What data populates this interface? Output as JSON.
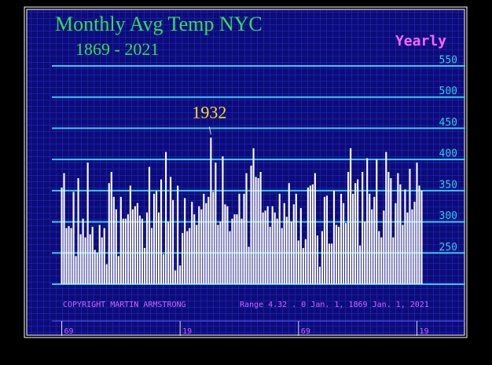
{
  "chart_data": {
    "type": "bar",
    "title": "Monthly Avg Temp NYC",
    "subtitle": "1869 - 2021",
    "label": "Yearly",
    "copyright": "COPYRIGHT MARTIN ARMSTRONG",
    "range_text": "Range  4.32 . 0 Jan.  1,  1869 Jan.  1,  2021",
    "annotation": {
      "text": "1932",
      "x": 1932
    },
    "color": "#ffffff",
    "grid": true,
    "x": [
      1869,
      1870,
      1871,
      1872,
      1873,
      1874,
      1875,
      1876,
      1877,
      1878,
      1879,
      1880,
      1881,
      1882,
      1883,
      1884,
      1885,
      1886,
      1887,
      1888,
      1889,
      1890,
      1891,
      1892,
      1893,
      1894,
      1895,
      1896,
      1897,
      1898,
      1899,
      1900,
      1901,
      1902,
      1903,
      1904,
      1905,
      1906,
      1907,
      1908,
      1909,
      1910,
      1911,
      1912,
      1913,
      1914,
      1915,
      1916,
      1917,
      1918,
      1919,
      1920,
      1921,
      1922,
      1923,
      1924,
      1925,
      1926,
      1927,
      1928,
      1929,
      1930,
      1931,
      1932,
      1933,
      1934,
      1935,
      1936,
      1937,
      1938,
      1939,
      1940,
      1941,
      1942,
      1943,
      1944,
      1945,
      1946,
      1947,
      1948,
      1949,
      1950,
      1951,
      1952,
      1953,
      1954,
      1955,
      1956,
      1957,
      1958,
      1959,
      1960,
      1961,
      1962,
      1963,
      1964,
      1965,
      1966,
      1967,
      1968,
      1969,
      1970,
      1971,
      1972,
      1973,
      1974,
      1975,
      1976,
      1977,
      1978,
      1979,
      1980,
      1981,
      1982,
      1983,
      1984,
      1985,
      1986,
      1987,
      1988,
      1989,
      1990,
      1991,
      1992,
      1993,
      1994,
      1995,
      1996,
      1997,
      1998,
      1999,
      2000,
      2001,
      2002,
      2003,
      2004,
      2005,
      2006,
      2007,
      2008,
      2009,
      2010,
      2011,
      2012,
      2013,
      2014,
      2015,
      2016,
      2017,
      2018,
      2019,
      2020,
      2021
    ],
    "values": [
      355,
      378,
      290,
      293,
      290,
      348,
      245,
      370,
      280,
      305,
      275,
      395,
      280,
      292,
      255,
      250,
      295,
      275,
      290,
      232,
      362,
      380,
      340,
      320,
      245,
      340,
      305,
      305,
      312,
      358,
      320,
      325,
      330,
      310,
      305,
      258,
      315,
      388,
      290,
      345,
      350,
      315,
      368,
      248,
      412,
      300,
      372,
      335,
      222,
      358,
      230,
      282,
      338,
      285,
      290,
      332,
      312,
      295,
      325,
      320,
      345,
      330,
      340,
      435,
      348,
      395,
      295,
      300,
      405,
      328,
      325,
      285,
      305,
      312,
      312,
      345,
      305,
      345,
      378,
      260,
      390,
      418,
      372,
      370,
      380,
      315,
      318,
      325,
      292,
      325,
      315,
      305,
      345,
      290,
      330,
      308,
      362,
      300,
      328,
      345,
      270,
      322,
      258,
      272,
      355,
      358,
      360,
      378,
      278,
      228,
      285,
      340,
      342,
      265,
      265,
      350,
      295,
      292,
      345,
      330,
      298,
      380,
      418,
      345,
      362,
      368,
      262,
      380,
      300,
      402,
      345,
      320,
      340,
      400,
      285,
      275,
      318,
      412,
      380,
      370,
      275,
      330,
      378,
      360,
      295,
      352,
      315,
      385,
      320,
      332,
      395,
      358,
      350
    ],
    "xlim": [
      1868.5,
      2021.5
    ],
    "xticks": [
      {
        "value": 1869,
        "label": "69"
      },
      {
        "value": 1919,
        "label": "19"
      },
      {
        "value": 1969,
        "label": "69"
      },
      {
        "value": 2019,
        "label": "19"
      }
    ],
    "ylim": [
      200,
      550
    ],
    "yticks": [
      250,
      300,
      350,
      400,
      450,
      500,
      550
    ]
  }
}
